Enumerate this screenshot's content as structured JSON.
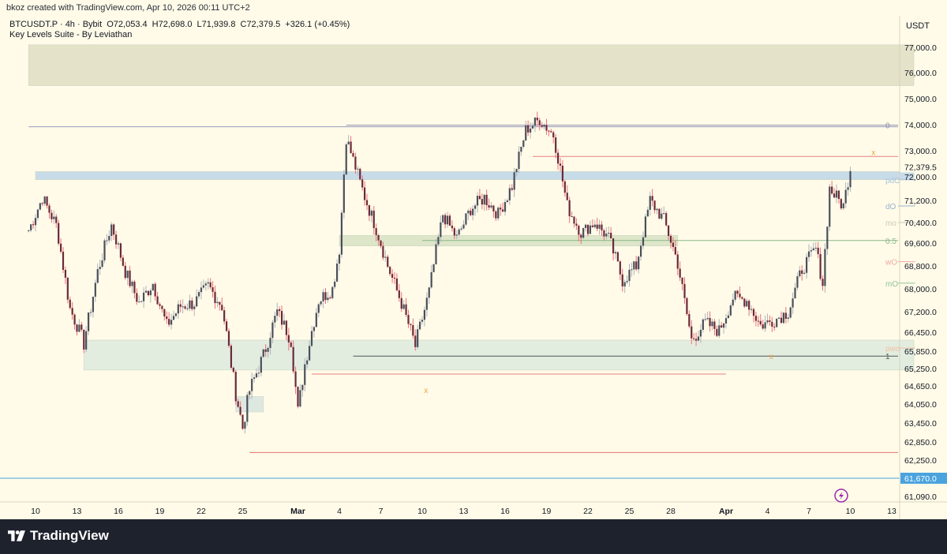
{
  "header": {
    "credit": "bkoz created with TradingView.com, Apr 10, 2026 00:11 UTC+2",
    "symbol": "BTCUSDT.P · 4h · Bybit",
    "open": "O72,053.4",
    "high": "H72,698.0",
    "low": "L71,939.8",
    "close": "C72,379.5",
    "change": "+326.1 (+0.45%)",
    "indicator": "Key Levels Suite - By Leviathan"
  },
  "currency": "USDT",
  "footer": {
    "brand": "TradingView"
  },
  "colors": {
    "background": "#fffbe8",
    "bull_candle": "#b0b3ba",
    "bear_candle": "#ef6f78",
    "body": "#6b2a3a",
    "current_price": "#4aa3df",
    "last_price_tag": "#2f3440"
  },
  "chart_data": {
    "type": "candlestick",
    "timeframe": "4h",
    "ylim": [
      60900,
      77400
    ],
    "x_ticks": [
      {
        "label": "10",
        "day": 0
      },
      {
        "label": "13",
        "day": 3
      },
      {
        "label": "16",
        "day": 6
      },
      {
        "label": "19",
        "day": 9
      },
      {
        "label": "22",
        "day": 12
      },
      {
        "label": "25",
        "day": 15
      },
      {
        "label": "Mar",
        "day": 19
      },
      {
        "label": "4",
        "day": 22
      },
      {
        "label": "7",
        "day": 25
      },
      {
        "label": "10",
        "day": 28
      },
      {
        "label": "13",
        "day": 31
      },
      {
        "label": "16",
        "day": 34
      },
      {
        "label": "19",
        "day": 37
      },
      {
        "label": "22",
        "day": 40
      },
      {
        "label": "25",
        "day": 43
      },
      {
        "label": "28",
        "day": 46
      },
      {
        "label": "Apr",
        "day": 50
      },
      {
        "label": "4",
        "day": 53
      },
      {
        "label": "7",
        "day": 56
      },
      {
        "label": "10",
        "day": 59
      },
      {
        "label": "13",
        "day": 62
      }
    ],
    "y_ticks": [
      77000,
      76000,
      75000,
      74000,
      73000,
      72000,
      71200,
      70400,
      69600,
      68800,
      68000,
      67200,
      66450,
      65850,
      65250,
      64650,
      64050,
      63450,
      62850,
      62250,
      61090
    ],
    "y_tick_labels": [
      "77,000.0",
      "76,000.0",
      "75,000.0",
      "74,000.0",
      "73,000.0",
      "72,000.0",
      "71,200.0",
      "70,400.0",
      "69,600.0",
      "68,800.0",
      "68,000.0",
      "67,200.0",
      "66,450.0",
      "65,850.0",
      "65,250.0",
      "64,650.0",
      "64,050.0",
      "63,450.0",
      "62,850.0",
      "62,250.0",
      "61,090.0"
    ],
    "last_price": {
      "value": 72379.5,
      "label": "72,379.5"
    },
    "current_line": {
      "value": 61670,
      "label": "61,670.0"
    },
    "anchor_points": [
      [
        -0.5,
        70100
      ],
      [
        0.5,
        71300
      ],
      [
        1.5,
        70300
      ],
      [
        2.5,
        67300
      ],
      [
        3.5,
        66100
      ],
      [
        4.5,
        68600
      ],
      [
        5.5,
        70300
      ],
      [
        6.5,
        68600
      ],
      [
        7.5,
        67500
      ],
      [
        8.5,
        68200
      ],
      [
        9.5,
        66700
      ],
      [
        10.5,
        67400
      ],
      [
        11.5,
        67500
      ],
      [
        12.5,
        68100
      ],
      [
        13.5,
        67400
      ],
      [
        14.5,
        64400
      ],
      [
        15,
        63300
      ],
      [
        15.5,
        64500
      ],
      [
        16.5,
        65700
      ],
      [
        17.5,
        67200
      ],
      [
        18.5,
        66200
      ],
      [
        19,
        63800
      ],
      [
        19.5,
        65400
      ],
      [
        20.5,
        67600
      ],
      [
        21.5,
        68000
      ],
      [
        22,
        69400
      ],
      [
        22.5,
        73500
      ],
      [
        23.5,
        71800
      ],
      [
        24.5,
        70400
      ],
      [
        25.5,
        68800
      ],
      [
        26.5,
        67500
      ],
      [
        27.5,
        66000
      ],
      [
        28.5,
        67900
      ],
      [
        29.5,
        70700
      ],
      [
        30.5,
        69800
      ],
      [
        31.5,
        70900
      ],
      [
        32.5,
        71300
      ],
      [
        33.5,
        70700
      ],
      [
        34.5,
        71700
      ],
      [
        35.5,
        73800
      ],
      [
        36.5,
        74200
      ],
      [
        37.5,
        73600
      ],
      [
        38.5,
        71000
      ],
      [
        39.5,
        70000
      ],
      [
        40.5,
        70400
      ],
      [
        41.5,
        69800
      ],
      [
        42.5,
        68300
      ],
      [
        43.5,
        68800
      ],
      [
        44.5,
        71200
      ],
      [
        45.5,
        70500
      ],
      [
        46.5,
        68900
      ],
      [
        47.5,
        66200
      ],
      [
        48.5,
        66800
      ],
      [
        49.5,
        66500
      ],
      [
        50.5,
        67700
      ],
      [
        51.5,
        67600
      ],
      [
        52.5,
        66700
      ],
      [
        53.5,
        66900
      ],
      [
        54.5,
        67200
      ],
      [
        55.5,
        68700
      ],
      [
        56.5,
        69400
      ],
      [
        57,
        68200
      ],
      [
        57.5,
        71600
      ],
      [
        58.5,
        71000
      ],
      [
        59,
        72350
      ]
    ],
    "zones": [
      {
        "name": "supply-zone-top",
        "day_from": -0.5,
        "day_to": 63.6,
        "low": 75500,
        "high": 77100,
        "color": "#e4e2c8"
      },
      {
        "name": "blue-zone",
        "day_from": 0,
        "day_to": 63.6,
        "low": 71900,
        "high": 72200,
        "color": "#c7dbe8"
      },
      {
        "name": "green-zone-mid",
        "day_from": 22,
        "day_to": 46.5,
        "low": 69500,
        "high": 69900,
        "color": "#dde6c8"
      },
      {
        "name": "green-zone-low",
        "day_from": 3.5,
        "day_to": 63.6,
        "low": 65200,
        "high": 66200,
        "color": "#e2ede0"
      },
      {
        "name": "small-zone",
        "day_from": 14.5,
        "day_to": 16.5,
        "low": 63800,
        "high": 64300,
        "color": "#dde8e0"
      }
    ],
    "levels": [
      {
        "name": "level-0",
        "label": "0",
        "value": 73980,
        "day_from": 22.5,
        "day_to": 63.6,
        "color": "#8f8fb0"
      },
      {
        "name": "level-74000-long",
        "label": "",
        "value": 73920,
        "day_from": -0.5,
        "day_to": 63.6,
        "color": "#9a9ac0"
      },
      {
        "name": "level-1",
        "label": "1",
        "value": 65680,
        "day_from": 23,
        "day_to": 63.6,
        "color": "#555555"
      },
      {
        "name": "level-0-5",
        "label": "0.5",
        "value": 69700,
        "day_from": 28,
        "day_to": 63.6,
        "color": "#8ab88a"
      },
      {
        "name": "level-red-top",
        "label": "",
        "value": 72780,
        "day_from": 36,
        "day_to": 63.6,
        "color": "#e88080"
      },
      {
        "name": "level-red-mid",
        "label": "",
        "value": 65060,
        "day_from": 20,
        "day_to": 50,
        "color": "#e88080"
      },
      {
        "name": "level-red-low",
        "label": "",
        "value": 62500,
        "day_from": 15.5,
        "day_to": 62.5,
        "color": "#e87070"
      },
      {
        "name": "level-pdo",
        "label": "pdO",
        "value": 71900,
        "day_from": 63.7,
        "day_to": 64.3,
        "color": "#a8c4e0"
      },
      {
        "name": "level-do",
        "label": "dO",
        "value": 71000,
        "day_from": 63.7,
        "day_to": 64.3,
        "color": "#9ab0d0"
      },
      {
        "name": "level-mo",
        "label": "mo",
        "value": 70400,
        "day_from": 63.7,
        "day_to": 64.3,
        "color": "#c8c8b8"
      },
      {
        "name": "level-wo",
        "label": "wO",
        "value": 68950,
        "day_from": 63.7,
        "day_to": 64.3,
        "color": "#f0a8a0"
      },
      {
        "name": "level-mo2",
        "label": "mO",
        "value": 68200,
        "day_from": 63.7,
        "day_to": 64.3,
        "color": "#8fc49a"
      },
      {
        "name": "level-pwo",
        "label": "pwo",
        "value": 65950,
        "day_from": 63.7,
        "day_to": 64.3,
        "color": "#f0c0a0"
      }
    ],
    "markers": [
      {
        "name": "x-marker-1",
        "label": "x",
        "day": 28.3,
        "value": 64520
      },
      {
        "name": "x-marker-2",
        "label": "x",
        "day": 53.3,
        "value": 65680
      },
      {
        "name": "x-marker-3",
        "label": "x",
        "day": 60.7,
        "value": 72950
      }
    ]
  }
}
